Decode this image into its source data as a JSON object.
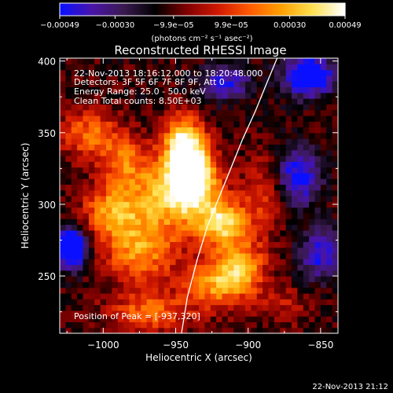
{
  "chart_data": {
    "type": "heatmap",
    "title": "Reconstructed RHESSI Image",
    "xlabel": "Heliocentric X (arcsec)",
    "ylabel": "Heliocentric Y (arcsec)",
    "xlim": [
      -1030,
      -838
    ],
    "ylim": [
      210,
      402
    ],
    "xticks": [
      -1000,
      -950,
      -900,
      -850
    ],
    "yticks": [
      250,
      300,
      350,
      400
    ],
    "xtick_labels": [
      "−1000",
      "−950",
      "−900",
      "−850"
    ],
    "ytick_labels": [
      "250",
      "300",
      "350",
      "400"
    ],
    "colorbar": {
      "range": [
        -0.00049,
        0.00049
      ],
      "ticks": [
        -0.00049,
        -0.0003,
        -9.9e-05,
        9.9e-05,
        0.0003,
        0.00049
      ],
      "tick_labels": [
        "−0.00049",
        "−0.00030",
        "−9.9e−05",
        "9.9e−05",
        "0.00030",
        "0.00049"
      ],
      "unit_label": "(photons cm⁻² s⁻¹ asec⁻²)",
      "colormap": [
        "#0a10ff",
        "#4a14a8",
        "#3a1a50",
        "#000000",
        "#800000",
        "#d01800",
        "#ff5a00",
        "#ffa000",
        "#ffe050",
        "#ffffff"
      ]
    },
    "annotations": [
      "22-Nov-2013 18:16:12.000 to 18:20:48.000",
      "Detectors: 3F 5F 6F 7F 8F 9F, Att 0",
      "Energy Range: 25.0 - 50.0 keV",
      "Clean     Total counts: 8.50E+03"
    ],
    "peak_label": "Position of Peak = [-937,320]",
    "limb_curve": {
      "x": [
        -946,
        -942,
        -935,
        -928,
        -920,
        -912,
        -904,
        -895,
        -887,
        -880
      ],
      "y": [
        210,
        235,
        262,
        285,
        305,
        325,
        345,
        365,
        385,
        402
      ]
    },
    "blobs": [
      {
        "x": -940,
        "y": 322,
        "sx": 12,
        "sy": 16,
        "a": 1.0
      },
      {
        "x": -945,
        "y": 345,
        "sx": 9,
        "sy": 13,
        "a": 0.65
      },
      {
        "x": -955,
        "y": 305,
        "sx": 22,
        "sy": 18,
        "a": 0.55
      },
      {
        "x": -918,
        "y": 287,
        "sx": 12,
        "sy": 12,
        "a": 0.7
      },
      {
        "x": -905,
        "y": 255,
        "sx": 12,
        "sy": 14,
        "a": 0.6
      },
      {
        "x": -925,
        "y": 245,
        "sx": 14,
        "sy": 12,
        "a": 0.5
      },
      {
        "x": -975,
        "y": 268,
        "sx": 18,
        "sy": 16,
        "a": 0.55
      },
      {
        "x": -995,
        "y": 295,
        "sx": 14,
        "sy": 12,
        "a": 0.5
      },
      {
        "x": -1010,
        "y": 350,
        "sx": 14,
        "sy": 12,
        "a": 0.45
      },
      {
        "x": -985,
        "y": 330,
        "sx": 12,
        "sy": 14,
        "a": 0.4
      },
      {
        "x": -968,
        "y": 225,
        "sx": 20,
        "sy": 10,
        "a": 0.45
      },
      {
        "x": -890,
        "y": 305,
        "sx": 10,
        "sy": 20,
        "a": 0.3
      },
      {
        "x": -875,
        "y": 230,
        "sx": 12,
        "sy": 10,
        "a": 0.2
      }
    ],
    "negative_regions": [
      {
        "x": -1022,
        "y": 270,
        "sx": 8,
        "sy": 10,
        "a": 0.9
      },
      {
        "x": -858,
        "y": 390,
        "sx": 12,
        "sy": 10,
        "a": 0.8
      },
      {
        "x": -865,
        "y": 320,
        "sx": 10,
        "sy": 14,
        "a": 0.6
      },
      {
        "x": -915,
        "y": 385,
        "sx": 12,
        "sy": 8,
        "a": 0.5
      },
      {
        "x": -850,
        "y": 265,
        "sx": 10,
        "sy": 12,
        "a": 0.5
      }
    ]
  },
  "footer": {
    "timestamp": "22-Nov-2013 21:12"
  }
}
